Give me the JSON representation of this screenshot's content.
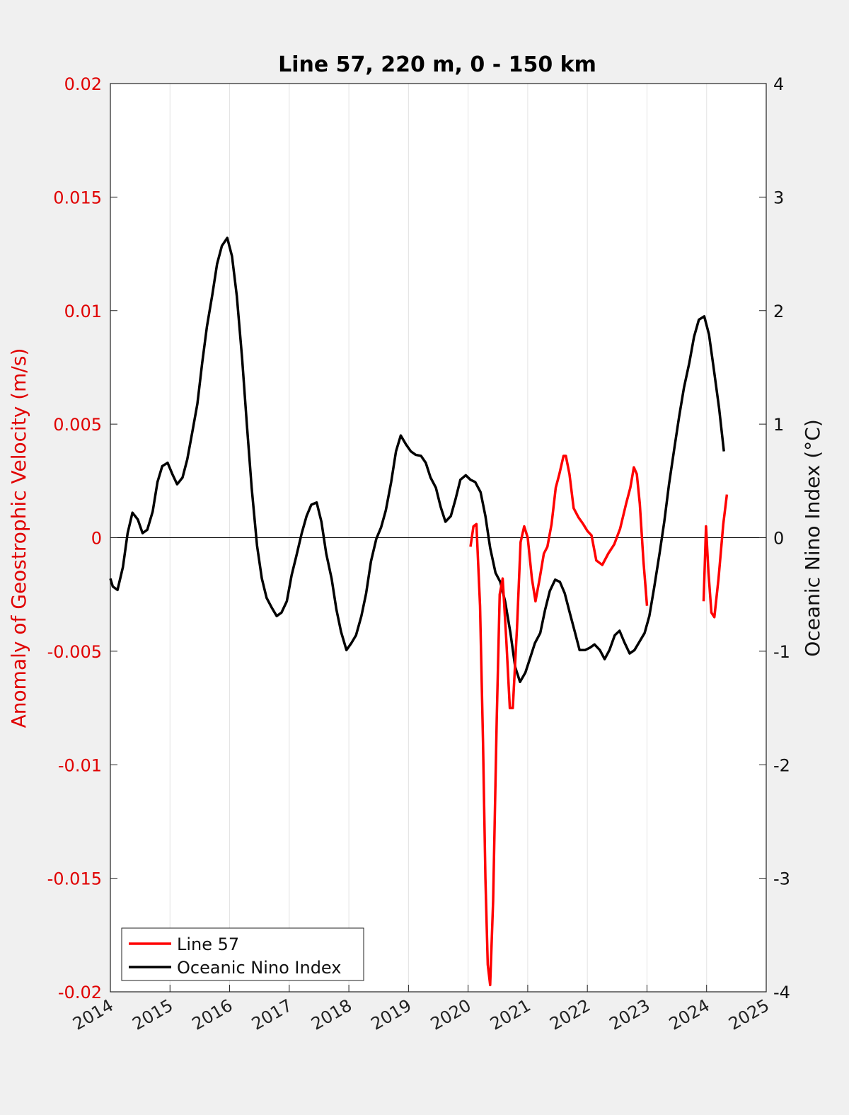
{
  "chart_data": {
    "type": "line",
    "title": "Line 57, 220 m, 0 - 150 km",
    "xlabel": "",
    "ylabel_left": "Anomaly of Geostrophic Velocity (m/s)",
    "ylabel_right": "Oceanic Nino Index (°C)",
    "xlim": [
      2014,
      2025
    ],
    "ylim_left": [
      -0.02,
      0.02
    ],
    "ylim_right": [
      -4,
      4
    ],
    "x_ticks": [
      "2014",
      "2015",
      "2016",
      "2017",
      "2018",
      "2019",
      "2020",
      "2021",
      "2022",
      "2023",
      "2024",
      "2025"
    ],
    "y_left_ticks": [
      "0.02",
      "0.015",
      "0.01",
      "0.005",
      "0",
      "-0.005",
      "-0.01",
      "-0.015",
      "-0.02"
    ],
    "y_right_ticks": [
      "4",
      "3",
      "2",
      "1",
      "0",
      "-1",
      "-2",
      "-3",
      "-4"
    ],
    "grid": "vertical",
    "legend_position": "bottom-left",
    "colors": {
      "line57": "#ff0000",
      "oni": "#000000",
      "left_axis": "#e00000"
    },
    "series": [
      {
        "name": "Line 57",
        "axis": "left",
        "segments": [
          [
            [
              2020.04,
              -0.0004
            ],
            [
              2020.09,
              0.0005
            ],
            [
              2020.14,
              0.0006
            ],
            [
              2020.2,
              -0.003
            ],
            [
              2020.25,
              -0.009
            ],
            [
              2020.29,
              -0.015
            ],
            [
              2020.33,
              -0.0188
            ],
            [
              2020.37,
              -0.0197
            ],
            [
              2020.42,
              -0.016
            ],
            [
              2020.48,
              -0.008
            ],
            [
              2020.53,
              -0.0025
            ],
            [
              2020.58,
              -0.0018
            ],
            [
              2020.64,
              -0.0045
            ],
            [
              2020.7,
              -0.0075
            ],
            [
              2020.75,
              -0.0075
            ],
            [
              2020.82,
              -0.004
            ],
            [
              2020.88,
              -0.0002
            ],
            [
              2020.94,
              0.0005
            ],
            [
              2021.0,
              0.0
            ],
            [
              2021.07,
              -0.0018
            ],
            [
              2021.13,
              -0.0028
            ],
            [
              2021.2,
              -0.0018
            ],
            [
              2021.27,
              -0.0007
            ],
            [
              2021.33,
              -0.0004
            ],
            [
              2021.4,
              0.0006
            ],
            [
              2021.47,
              0.0022
            ],
            [
              2021.53,
              0.0028
            ],
            [
              2021.6,
              0.0036
            ],
            [
              2021.64,
              0.0036
            ],
            [
              2021.7,
              0.0028
            ],
            [
              2021.77,
              0.0013
            ],
            [
              2021.85,
              0.0009
            ],
            [
              2021.93,
              0.0006
            ],
            [
              2022.0,
              0.0003
            ],
            [
              2022.07,
              0.0001
            ],
            [
              2022.15,
              -0.001
            ],
            [
              2022.25,
              -0.0012
            ],
            [
              2022.35,
              -0.0007
            ],
            [
              2022.45,
              -0.0003
            ],
            [
              2022.55,
              0.0004
            ],
            [
              2022.65,
              0.0015
            ],
            [
              2022.72,
              0.0022
            ],
            [
              2022.78,
              0.0031
            ],
            [
              2022.83,
              0.0028
            ],
            [
              2022.88,
              0.0015
            ],
            [
              2022.94,
              -0.001
            ],
            [
              2023.0,
              -0.003
            ]
          ],
          [
            [
              2023.95,
              -0.0028
            ],
            [
              2023.99,
              0.0005
            ],
            [
              2024.03,
              -0.0015
            ],
            [
              2024.08,
              -0.0033
            ],
            [
              2024.13,
              -0.0035
            ],
            [
              2024.2,
              -0.0018
            ],
            [
              2024.28,
              0.0006
            ],
            [
              2024.34,
              0.0019
            ]
          ]
        ]
      },
      {
        "name": "Oceanic Nino Index",
        "axis": "right",
        "points": [
          [
            2014.0,
            -0.36
          ],
          [
            2014.04,
            -0.43
          ],
          [
            2014.12,
            -0.46
          ],
          [
            2014.21,
            -0.26
          ],
          [
            2014.29,
            0.04
          ],
          [
            2014.37,
            0.22
          ],
          [
            2014.46,
            0.16
          ],
          [
            2014.54,
            0.04
          ],
          [
            2014.62,
            0.07
          ],
          [
            2014.71,
            0.23
          ],
          [
            2014.79,
            0.49
          ],
          [
            2014.87,
            0.63
          ],
          [
            2014.96,
            0.66
          ],
          [
            2015.04,
            0.56
          ],
          [
            2015.12,
            0.47
          ],
          [
            2015.21,
            0.53
          ],
          [
            2015.29,
            0.69
          ],
          [
            2015.37,
            0.92
          ],
          [
            2015.46,
            1.18
          ],
          [
            2015.54,
            1.54
          ],
          [
            2015.62,
            1.86
          ],
          [
            2015.71,
            2.14
          ],
          [
            2015.79,
            2.41
          ],
          [
            2015.87,
            2.57
          ],
          [
            2015.96,
            2.64
          ],
          [
            2016.04,
            2.48
          ],
          [
            2016.12,
            2.13
          ],
          [
            2016.21,
            1.58
          ],
          [
            2016.29,
            0.99
          ],
          [
            2016.37,
            0.44
          ],
          [
            2016.46,
            -0.07
          ],
          [
            2016.54,
            -0.36
          ],
          [
            2016.62,
            -0.53
          ],
          [
            2016.71,
            -0.62
          ],
          [
            2016.79,
            -0.69
          ],
          [
            2016.87,
            -0.66
          ],
          [
            2016.96,
            -0.56
          ],
          [
            2017.04,
            -0.33
          ],
          [
            2017.12,
            -0.16
          ],
          [
            2017.21,
            0.04
          ],
          [
            2017.29,
            0.19
          ],
          [
            2017.37,
            0.29
          ],
          [
            2017.46,
            0.31
          ],
          [
            2017.54,
            0.14
          ],
          [
            2017.62,
            -0.14
          ],
          [
            2017.71,
            -0.36
          ],
          [
            2017.79,
            -0.63
          ],
          [
            2017.87,
            -0.83
          ],
          [
            2017.96,
            -0.99
          ],
          [
            2018.04,
            -0.93
          ],
          [
            2018.12,
            -0.86
          ],
          [
            2018.21,
            -0.69
          ],
          [
            2018.29,
            -0.49
          ],
          [
            2018.37,
            -0.21
          ],
          [
            2018.46,
            -0.01
          ],
          [
            2018.54,
            0.09
          ],
          [
            2018.62,
            0.24
          ],
          [
            2018.71,
            0.49
          ],
          [
            2018.79,
            0.76
          ],
          [
            2018.87,
            0.9
          ],
          [
            2018.96,
            0.82
          ],
          [
            2019.04,
            0.76
          ],
          [
            2019.12,
            0.73
          ],
          [
            2019.21,
            0.72
          ],
          [
            2019.29,
            0.66
          ],
          [
            2019.37,
            0.53
          ],
          [
            2019.46,
            0.44
          ],
          [
            2019.54,
            0.27
          ],
          [
            2019.62,
            0.14
          ],
          [
            2019.71,
            0.19
          ],
          [
            2019.79,
            0.34
          ],
          [
            2019.87,
            0.51
          ],
          [
            2019.96,
            0.55
          ],
          [
            2020.04,
            0.51
          ],
          [
            2020.12,
            0.49
          ],
          [
            2020.21,
            0.4
          ],
          [
            2020.29,
            0.19
          ],
          [
            2020.37,
            -0.09
          ],
          [
            2020.46,
            -0.31
          ],
          [
            2020.54,
            -0.39
          ],
          [
            2020.62,
            -0.56
          ],
          [
            2020.71,
            -0.84
          ],
          [
            2020.79,
            -1.14
          ],
          [
            2020.87,
            -1.27
          ],
          [
            2020.96,
            -1.19
          ],
          [
            2021.04,
            -1.06
          ],
          [
            2021.12,
            -0.93
          ],
          [
            2021.21,
            -0.84
          ],
          [
            2021.29,
            -0.64
          ],
          [
            2021.37,
            -0.47
          ],
          [
            2021.46,
            -0.37
          ],
          [
            2021.54,
            -0.39
          ],
          [
            2021.62,
            -0.49
          ],
          [
            2021.71,
            -0.67
          ],
          [
            2021.79,
            -0.83
          ],
          [
            2021.87,
            -0.99
          ],
          [
            2021.96,
            -0.99
          ],
          [
            2022.04,
            -0.97
          ],
          [
            2022.12,
            -0.94
          ],
          [
            2022.21,
            -0.99
          ],
          [
            2022.29,
            -1.07
          ],
          [
            2022.37,
            -0.99
          ],
          [
            2022.46,
            -0.86
          ],
          [
            2022.54,
            -0.82
          ],
          [
            2022.62,
            -0.92
          ],
          [
            2022.71,
            -1.02
          ],
          [
            2022.79,
            -0.99
          ],
          [
            2022.87,
            -0.92
          ],
          [
            2022.96,
            -0.84
          ],
          [
            2023.04,
            -0.69
          ],
          [
            2023.12,
            -0.44
          ],
          [
            2023.21,
            -0.14
          ],
          [
            2023.29,
            0.14
          ],
          [
            2023.37,
            0.47
          ],
          [
            2023.46,
            0.79
          ],
          [
            2023.54,
            1.07
          ],
          [
            2023.62,
            1.32
          ],
          [
            2023.71,
            1.54
          ],
          [
            2023.79,
            1.77
          ],
          [
            2023.87,
            1.92
          ],
          [
            2023.96,
            1.95
          ],
          [
            2024.04,
            1.79
          ],
          [
            2024.12,
            1.49
          ],
          [
            2024.21,
            1.14
          ],
          [
            2024.29,
            0.76
          ]
        ]
      }
    ]
  }
}
